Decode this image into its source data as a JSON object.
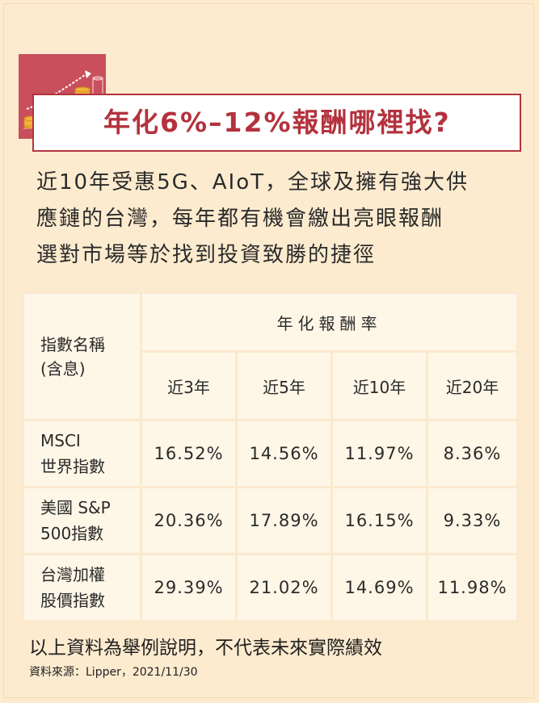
{
  "title": "年化6%–12%報酬哪裡找?",
  "intro_lines": [
    "近10年受惠5G、AIoT，全球及擁有強大供",
    "應鏈的台灣，每年都有機會繳出亮眼報酬",
    "選對市場等於找到投資致勝的捷徑"
  ],
  "table": {
    "name_header_line1": "指數名稱",
    "name_header_line2": "(含息)",
    "group_header": "年化報酬率",
    "periods": [
      "近3年",
      "近5年",
      "近10年",
      "近20年"
    ],
    "rows": [
      {
        "name_line1": "MSCI",
        "name_line2": "世界指數",
        "values": [
          "16.52%",
          "14.56%",
          "11.97%",
          "8.36%"
        ]
      },
      {
        "name_line1": "美國 S&P",
        "name_line2": "500指數",
        "values": [
          "20.36%",
          "17.89%",
          "16.15%",
          "9.33%"
        ]
      },
      {
        "name_line1": "台灣加權",
        "name_line2": "股價指數",
        "values": [
          "29.39%",
          "21.02%",
          "14.69%",
          "11.98%"
        ]
      }
    ]
  },
  "footnote": "以上資料為舉例說明，不代表未來實際績效",
  "source": "資料來源：Lipper，2021/11/30",
  "colors": {
    "background": "#fdebcf",
    "accent": "#b3323d",
    "icon_bg": "#c94f5c",
    "cell": "#fef6e7"
  },
  "icon": "coin-stacks-growth-icon"
}
